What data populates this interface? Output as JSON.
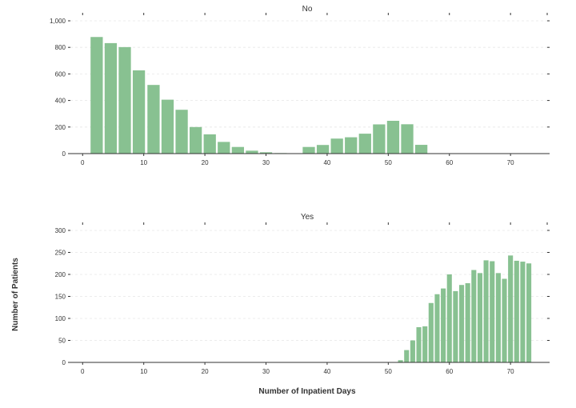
{
  "figure": {
    "ylabel": "Number of Patients",
    "xlabel": "Number of Inpatient Days",
    "bar_color": "#88c191",
    "grid_color": "#e6e6e6",
    "axis_color": "#333333",
    "text_color": "#333333"
  },
  "chart_data": [
    {
      "type": "bar",
      "title": "No",
      "grid": true,
      "xlim": [
        -2,
        76
      ],
      "ylim": [
        0,
        1000
      ],
      "xticks": [
        0,
        10,
        20,
        30,
        40,
        50,
        60,
        70
      ],
      "yticks": [
        0,
        200,
        400,
        600,
        800,
        1000
      ],
      "ytick_labels": [
        "0",
        "200",
        "400",
        "600",
        "800",
        "1,000"
      ],
      "bar_width": 2,
      "x": [
        2.3,
        4.6,
        6.9,
        9.2,
        11.6,
        13.9,
        16.2,
        18.5,
        20.8,
        23.1,
        25.4,
        27.7,
        30.0,
        32.4,
        34.7,
        37.0,
        39.3,
        41.6,
        43.9,
        46.2,
        48.5,
        50.8,
        53.1,
        55.4,
        57.8
      ],
      "values": [
        878,
        832,
        802,
        627,
        517,
        406,
        330,
        200,
        145,
        88,
        50,
        22,
        10,
        4,
        0,
        50,
        65,
        113,
        123,
        150,
        220,
        247,
        221,
        66,
        2
      ]
    },
    {
      "type": "bar",
      "title": "Yes",
      "grid": true,
      "xlim": [
        -2,
        76
      ],
      "ylim": [
        0,
        300
      ],
      "xticks": [
        0,
        10,
        20,
        30,
        40,
        50,
        60,
        70
      ],
      "yticks": [
        0,
        50,
        100,
        150,
        200,
        250,
        300
      ],
      "ytick_labels": [
        "0",
        "50",
        "100",
        "150",
        "200",
        "250",
        "300"
      ],
      "bar_width": 0.8,
      "x": [
        52,
        53,
        54,
        55,
        56,
        57,
        58,
        59,
        60,
        61,
        62,
        63,
        64,
        65,
        66,
        67,
        68,
        69,
        70,
        71,
        72
      ],
      "values": [
        5,
        28,
        50,
        80,
        82,
        135,
        155,
        168,
        200,
        162,
        176,
        180,
        210,
        203,
        232,
        230,
        203,
        190,
        243,
        231,
        229
      ],
      "extra_x": [
        73
      ],
      "extra_values": [
        225
      ]
    }
  ]
}
